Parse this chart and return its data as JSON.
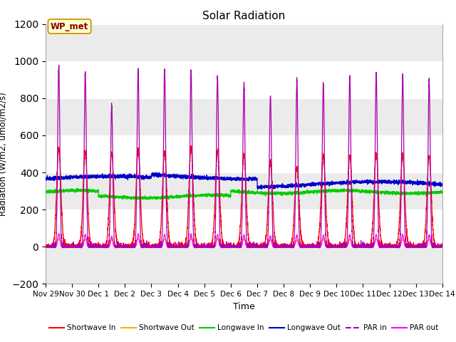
{
  "title": "Solar Radiation",
  "xlabel": "Time",
  "ylabel": "Radiation (W/m2, umol/m2/s)",
  "ylim": [
    -200,
    1200
  ],
  "yticks": [
    -200,
    0,
    200,
    400,
    600,
    800,
    1000,
    1200
  ],
  "num_days": 15,
  "fig_bg_color": "#ffffff",
  "plot_bg_color": "#ffffff",
  "colors": {
    "shortwave_in": "#ff0000",
    "shortwave_out": "#ffaa00",
    "longwave_in": "#00cc00",
    "longwave_out": "#0000cc",
    "par_in": "#aa00aa",
    "par_out": "#ff00ff"
  },
  "tick_labels": [
    "Nov 29",
    "Nov 30",
    "Dec 1",
    "Dec 2",
    "Dec 3",
    "Dec 4",
    "Dec 5",
    "Dec 6",
    "Dec 7",
    "Dec 8",
    "Dec 9",
    "Dec 10",
    "Dec 11",
    "Dec 12",
    "Dec 13",
    "Dec 14"
  ],
  "annotation_label": "WP_met",
  "sw_in_peaks": [
    530,
    510,
    510,
    520,
    510,
    535,
    515,
    500,
    460,
    430,
    490,
    490,
    500,
    490,
    490
  ],
  "par_in_peaks": [
    980,
    940,
    760,
    960,
    950,
    950,
    920,
    880,
    810,
    900,
    880,
    920,
    930,
    930,
    900
  ],
  "lw_in_base": 295,
  "lw_out_base": 335
}
